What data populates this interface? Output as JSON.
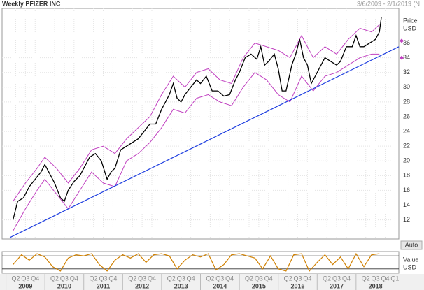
{
  "chart_data": {
    "type": "line",
    "title": "Weekly PFIZER INC",
    "subtitle": "3/6/2009 - 2/1/2019 (N",
    "y_label_lines": [
      "Price",
      "USD"
    ],
    "xlim": [
      2008.9,
      2019.1
    ],
    "ylim": [
      9.4,
      40.7
    ],
    "yticks": [
      12,
      14,
      16,
      18,
      20,
      22,
      24,
      26,
      28,
      30,
      32,
      34,
      36
    ],
    "grid": true,
    "xticks": [
      {
        "value": 2009.25,
        "label": "Q2"
      },
      {
        "value": 2009.5,
        "label": "Q3"
      },
      {
        "value": 2009.75,
        "label": "Q4"
      },
      {
        "value": 2010.25,
        "label": "Q2"
      },
      {
        "value": 2010.5,
        "label": "Q3"
      },
      {
        "value": 2010.75,
        "label": "Q4"
      },
      {
        "value": 2011.25,
        "label": "Q2"
      },
      {
        "value": 2011.5,
        "label": "Q3"
      },
      {
        "value": 2011.75,
        "label": "Q4"
      },
      {
        "value": 2012.25,
        "label": "Q2"
      },
      {
        "value": 2012.5,
        "label": "Q3"
      },
      {
        "value": 2012.75,
        "label": "Q4"
      },
      {
        "value": 2013.25,
        "label": "Q2"
      },
      {
        "value": 2013.5,
        "label": "Q3"
      },
      {
        "value": 2013.75,
        "label": "Q4"
      },
      {
        "value": 2014.25,
        "label": "Q2"
      },
      {
        "value": 2014.5,
        "label": "Q3"
      },
      {
        "value": 2014.75,
        "label": "Q4"
      },
      {
        "value": 2015.25,
        "label": "Q2"
      },
      {
        "value": 2015.5,
        "label": "Q3"
      },
      {
        "value": 2015.75,
        "label": "Q4"
      },
      {
        "value": 2016.25,
        "label": "Q2"
      },
      {
        "value": 2016.5,
        "label": "Q3"
      },
      {
        "value": 2016.75,
        "label": "Q4"
      },
      {
        "value": 2017.25,
        "label": "Q2"
      },
      {
        "value": 2017.5,
        "label": "Q3"
      },
      {
        "value": 2017.75,
        "label": "Q4"
      },
      {
        "value": 2018.25,
        "label": "Q2"
      },
      {
        "value": 2018.5,
        "label": "Q3"
      },
      {
        "value": 2018.75,
        "label": "Q4"
      },
      {
        "value": 2019,
        "label": "Q1"
      }
    ],
    "year_labels": [
      {
        "value": 2009,
        "label": "2009"
      },
      {
        "value": 2010,
        "label": "2010"
      },
      {
        "value": 2011,
        "label": "2011"
      },
      {
        "value": 2012,
        "label": "2012"
      },
      {
        "value": 2013,
        "label": "2013"
      },
      {
        "value": 2014,
        "label": "2014"
      },
      {
        "value": 2015,
        "label": "2015"
      },
      {
        "value": 2016,
        "label": "2016"
      },
      {
        "value": 2017,
        "label": "2017"
      },
      {
        "value": 2018,
        "label": "2018"
      }
    ],
    "series": [
      {
        "color": "#000000",
        "x": [
          2009.18,
          2009.3,
          2009.45,
          2009.6,
          2009.75,
          2009.9,
          2010.0,
          2010.1,
          2010.25,
          2010.4,
          2010.5,
          2010.6,
          2010.75,
          2010.9,
          2011.0,
          2011.15,
          2011.3,
          2011.45,
          2011.6,
          2011.7,
          2011.8,
          2011.95,
          2012.1,
          2012.25,
          2012.4,
          2012.55,
          2012.7,
          2012.85,
          2013.0,
          2013.1,
          2013.2,
          2013.3,
          2013.4,
          2013.5,
          2013.6,
          2013.75,
          2013.9,
          2014.0,
          2014.15,
          2014.3,
          2014.45,
          2014.6,
          2014.75,
          2014.9,
          2015.0,
          2015.15,
          2015.3,
          2015.45,
          2015.55,
          2015.65,
          2015.75,
          2015.9,
          2016.0,
          2016.1,
          2016.2,
          2016.35,
          2016.45,
          2016.55,
          2016.65,
          2016.75,
          2016.85,
          2016.95,
          2017.05,
          2017.2,
          2017.35,
          2017.5,
          2017.6,
          2017.75,
          2017.9,
          2018.0,
          2018.1,
          2018.2,
          2018.35,
          2018.5,
          2018.6,
          2018.65
        ],
        "values": [
          12,
          14.5,
          15,
          16.5,
          17.5,
          18.5,
          19.5,
          18.5,
          17,
          15,
          14.5,
          16,
          17.2,
          18,
          19,
          20.5,
          21,
          20,
          17.5,
          18.5,
          19,
          21.5,
          22,
          22.5,
          23,
          24,
          25,
          25,
          27,
          28,
          29,
          30.5,
          28.5,
          28,
          29,
          30,
          31,
          30.5,
          31.5,
          29.5,
          29.5,
          28.8,
          29,
          31,
          32,
          34,
          34.5,
          33.8,
          35.5,
          33,
          33.5,
          34.5,
          32.5,
          29.5,
          29.5,
          33,
          34.5,
          36.5,
          34,
          33,
          30.5,
          31.5,
          32.5,
          34,
          33.5,
          33,
          33.5,
          35.5,
          35.5,
          37,
          35.5,
          35.5,
          36,
          36.5,
          37.5,
          39.5
        ]
      },
      {
        "color": "#c040c0",
        "x": [
          2009.18,
          2009.5,
          2009.8,
          2010.0,
          2010.3,
          2010.6,
          2010.9,
          2011.2,
          2011.5,
          2011.8,
          2012.1,
          2012.4,
          2012.7,
          2013.0,
          2013.3,
          2013.6,
          2013.9,
          2014.2,
          2014.5,
          2014.8,
          2015.1,
          2015.4,
          2015.7,
          2016.0,
          2016.3,
          2016.6,
          2016.9,
          2017.2,
          2017.5,
          2017.8,
          2018.1,
          2018.4,
          2018.6
        ],
        "values": [
          14.5,
          17,
          19,
          20.5,
          19,
          17,
          19,
          21.5,
          22,
          21,
          23,
          24.5,
          26,
          29,
          31.5,
          30,
          32,
          32.5,
          31,
          30.5,
          34,
          36,
          35.5,
          35,
          34,
          37,
          34,
          35.5,
          34.5,
          36.5,
          38,
          37.5,
          38.5
        ]
      },
      {
        "color": "#c040c0",
        "x": [
          2009.18,
          2009.5,
          2009.8,
          2010.0,
          2010.3,
          2010.6,
          2010.9,
          2011.2,
          2011.5,
          2011.8,
          2012.1,
          2012.4,
          2012.7,
          2013.0,
          2013.3,
          2013.6,
          2013.9,
          2014.2,
          2014.5,
          2014.8,
          2015.1,
          2015.4,
          2015.7,
          2016.0,
          2016.3,
          2016.6,
          2016.9,
          2017.2,
          2017.5,
          2017.8,
          2018.1,
          2018.4,
          2018.6
        ],
        "values": [
          10.5,
          13.5,
          16,
          17.5,
          15.5,
          13.5,
          16,
          18.5,
          17,
          16.5,
          20,
          21,
          22.5,
          24.5,
          27,
          26.5,
          28.5,
          29,
          28,
          27.5,
          30,
          32,
          31,
          29,
          28,
          31.5,
          29.5,
          31.5,
          32,
          33,
          34,
          34.5,
          34.5
        ]
      }
    ],
    "trendline": {
      "color": "#2040e0",
      "x": [
        2009.1,
        2019.1
      ],
      "values": [
        9.6,
        35.5
      ]
    },
    "markers": {
      "color": "#c040c0",
      "values": [
        36.3,
        34
      ]
    },
    "button": "Auto",
    "oscillator": {
      "label_lines": [
        "Value",
        "USD"
      ],
      "ylim": [
        0,
        100
      ],
      "levels": [
        20,
        80
      ],
      "color": "#d08000",
      "x": [
        2009.18,
        2009.4,
        2009.6,
        2009.8,
        2010.0,
        2010.2,
        2010.4,
        2010.6,
        2010.8,
        2011.0,
        2011.2,
        2011.4,
        2011.6,
        2011.8,
        2012.0,
        2012.2,
        2012.4,
        2012.6,
        2012.8,
        2013.0,
        2013.2,
        2013.4,
        2013.6,
        2013.8,
        2014.0,
        2014.2,
        2014.4,
        2014.6,
        2014.8,
        2015.0,
        2015.2,
        2015.4,
        2015.6,
        2015.8,
        2016.0,
        2016.2,
        2016.4,
        2016.6,
        2016.8,
        2017.0,
        2017.2,
        2017.4,
        2017.6,
        2017.8,
        2018.0,
        2018.2,
        2018.4,
        2018.6
      ],
      "values": [
        40,
        85,
        60,
        90,
        75,
        30,
        10,
        70,
        85,
        80,
        90,
        40,
        10,
        60,
        85,
        70,
        90,
        50,
        85,
        90,
        80,
        20,
        60,
        85,
        75,
        90,
        15,
        40,
        85,
        90,
        80,
        70,
        20,
        80,
        20,
        10,
        85,
        90,
        10,
        50,
        85,
        40,
        75,
        20,
        90,
        30,
        85,
        90
      ]
    }
  }
}
